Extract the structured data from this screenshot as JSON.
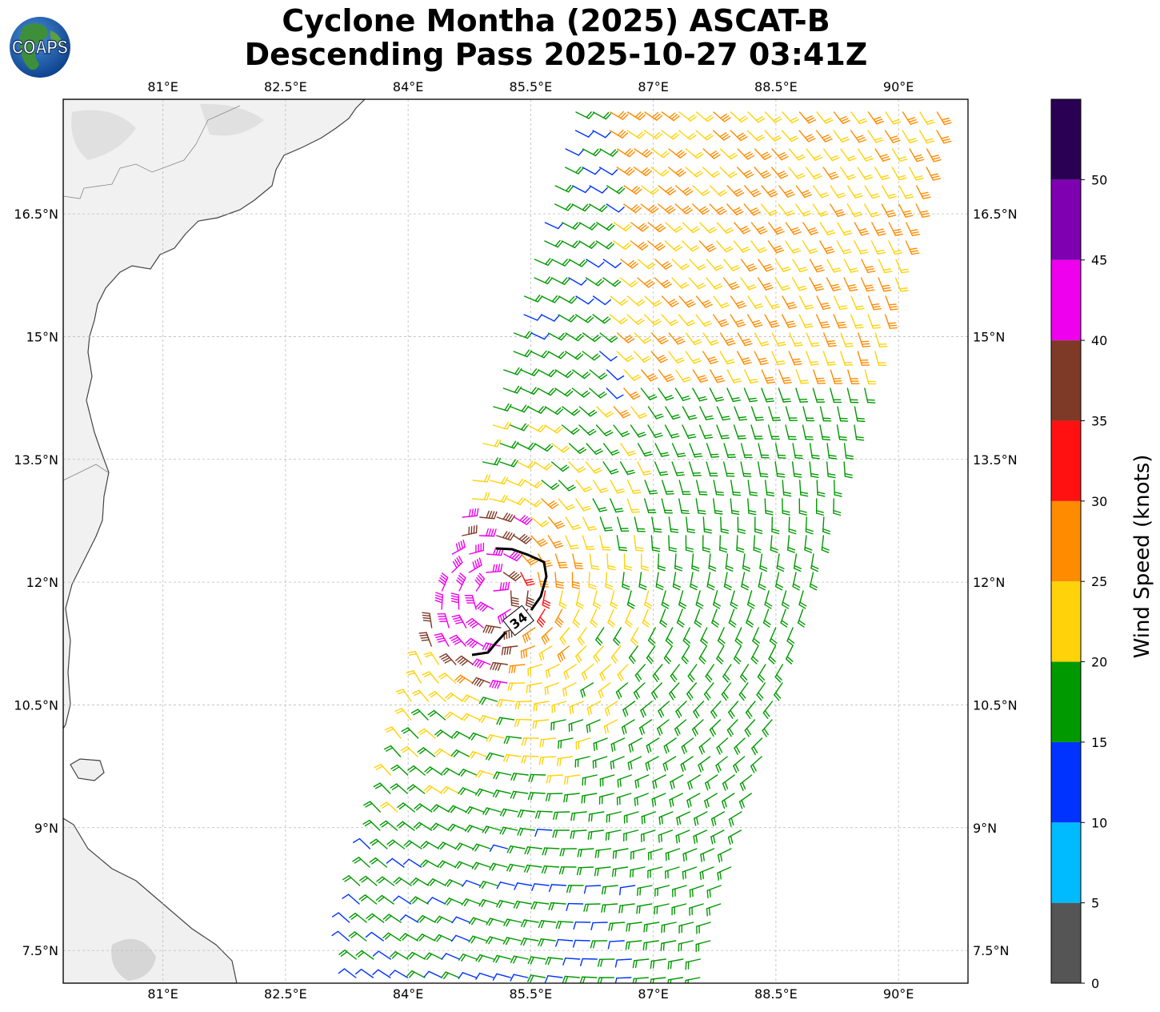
{
  "title": {
    "line1": "Cyclone Montha (2025) ASCAT-B",
    "line2": "Descending Pass 2025-10-27 03:41Z"
  },
  "logo": {
    "text": "COAPS",
    "icon": "globe-logo-icon"
  },
  "map": {
    "lon_ticks": [
      "81°E",
      "82.5°E",
      "84°E",
      "85.5°E",
      "87°E",
      "88.5°E",
      "90°E"
    ],
    "lon_values": [
      81,
      82.5,
      84,
      85.5,
      87,
      88.5,
      90
    ],
    "lat_ticks": [
      "16.5°N",
      "15°N",
      "13.5°N",
      "12°N",
      "10.5°N",
      "9°N",
      "7.5°N"
    ],
    "lat_values": [
      16.5,
      15,
      13.5,
      12,
      10.5,
      9,
      7.5
    ],
    "extent": {
      "lon": [
        79.78,
        90.85
      ],
      "lat": [
        7.1,
        17.9
      ]
    },
    "contour_label": "34",
    "gridlines": true
  },
  "colorbar": {
    "label": "Wind Speed (knots)",
    "ticks": [
      "0",
      "5",
      "10",
      "15",
      "20",
      "25",
      "30",
      "35",
      "40",
      "45",
      "50"
    ],
    "bins": [
      {
        "min": 0,
        "max": 5,
        "color": "#555555"
      },
      {
        "min": 5,
        "max": 10,
        "color": "#00bbff"
      },
      {
        "min": 10,
        "max": 15,
        "color": "#0033ff"
      },
      {
        "min": 15,
        "max": 20,
        "color": "#009900"
      },
      {
        "min": 20,
        "max": 25,
        "color": "#ffd20a"
      },
      {
        "min": 25,
        "max": 30,
        "color": "#ff8c00"
      },
      {
        "min": 30,
        "max": 35,
        "color": "#ff1111"
      },
      {
        "min": 35,
        "max": 40,
        "color": "#7f3a27"
      },
      {
        "min": 40,
        "max": 45,
        "color": "#ee00ee"
      },
      {
        "min": 45,
        "max": 50,
        "color": "#7e00b0"
      },
      {
        "min": 50,
        "max": 55,
        "color": "#2a0055"
      }
    ]
  }
}
